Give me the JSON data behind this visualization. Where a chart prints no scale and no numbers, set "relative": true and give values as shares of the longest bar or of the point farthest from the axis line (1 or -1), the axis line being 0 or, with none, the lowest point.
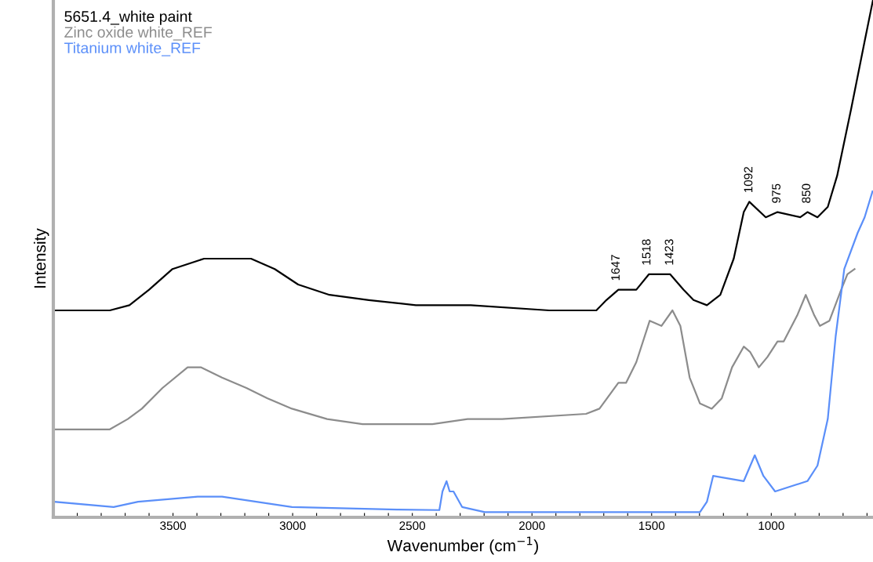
{
  "chart_data": {
    "type": "line",
    "relative": true,
    "xlabel": "Wavenumber (cm$^{−1}$)",
    "ylabel": "Intensity",
    "xlim": [
      4000,
      575
    ],
    "xticks": [
      {
        "value": 3900,
        "label": null
      },
      {
        "value": 3800,
        "label": null
      },
      {
        "value": 3700,
        "label": null
      },
      {
        "value": 3600,
        "label": null
      },
      3500,
      {
        "value": 3400,
        "label": null
      },
      {
        "value": 3300,
        "label": null
      },
      {
        "value": 3200,
        "label": null
      },
      {
        "value": 3100,
        "label": null
      },
      3000,
      {
        "value": 2900,
        "label": null
      },
      {
        "value": 2800,
        "label": null
      },
      {
        "value": 2700,
        "label": null
      },
      {
        "value": 2600,
        "label": null
      },
      2500,
      {
        "value": 2400,
        "label": null
      },
      {
        "value": 2300,
        "label": null
      },
      {
        "value": 2200,
        "label": null
      },
      {
        "value": 2100,
        "label": null
      },
      2000,
      {
        "value": 1900,
        "label": null
      },
      {
        "value": 1800,
        "label": null
      },
      {
        "value": 1700,
        "label": null
      },
      {
        "value": 1600,
        "label": null
      },
      1500,
      {
        "value": 1400,
        "label": null
      },
      {
        "value": 1300,
        "label": null
      },
      {
        "value": 1200,
        "label": null
      },
      {
        "value": 1100,
        "label": null
      },
      1000,
      {
        "value": 900,
        "label": null
      },
      {
        "value": 800,
        "label": null
      },
      {
        "value": 700,
        "label": null
      },
      {
        "value": 600,
        "label": null
      }
    ],
    "grid": false,
    "legend": "top left",
    "marker": "none",
    "line_style": "solid",
    "series": [
      {
        "name": "5651.4_white paint",
        "color": "#000000",
        "x": [
          4000,
          3764,
          3682,
          3600,
          3502,
          3370,
          3272,
          3174,
          3075,
          2977,
          2846,
          2682,
          2485,
          2256,
          1928,
          1731,
          1689,
          1639,
          1584,
          1564,
          1511,
          1459,
          1423,
          1367,
          1325,
          1269,
          1213,
          1157,
          1115,
          1092,
          1023,
          974,
          879,
          849,
          807,
          764,
          725,
          666,
          610,
          575
        ],
        "values": [
          0.4,
          0.4,
          0.41,
          0.44,
          0.48,
          0.5,
          0.5,
          0.5,
          0.48,
          0.45,
          0.43,
          0.42,
          0.41,
          0.41,
          0.4,
          0.4,
          0.42,
          0.44,
          0.44,
          0.44,
          0.47,
          0.47,
          0.47,
          0.44,
          0.42,
          0.41,
          0.43,
          0.5,
          0.59,
          0.61,
          0.58,
          0.59,
          0.58,
          0.59,
          0.58,
          0.6,
          0.66,
          0.79,
          0.92,
          1.0
        ]
      },
      {
        "name": "Zinc oxide white_REF",
        "color": "#8c8c8c",
        "x": [
          3995,
          3764,
          3689,
          3630,
          3544,
          3439,
          3384,
          3295,
          3193,
          3105,
          3003,
          2856,
          2708,
          2416,
          2269,
          2125,
          1774,
          1718,
          1639,
          1607,
          1564,
          1508,
          1459,
          1413,
          1380,
          1341,
          1298,
          1249,
          1207,
          1164,
          1115,
          1089,
          1052,
          1016,
          974,
          948,
          892,
          856,
          820,
          797,
          757,
          708,
          682,
          652
        ],
        "values": [
          0.17,
          0.17,
          0.19,
          0.21,
          0.25,
          0.29,
          0.29,
          0.27,
          0.25,
          0.23,
          0.21,
          0.19,
          0.18,
          0.18,
          0.19,
          0.19,
          0.2,
          0.21,
          0.26,
          0.26,
          0.3,
          0.38,
          0.37,
          0.4,
          0.37,
          0.27,
          0.22,
          0.21,
          0.23,
          0.29,
          0.33,
          0.32,
          0.29,
          0.31,
          0.34,
          0.34,
          0.39,
          0.43,
          0.39,
          0.37,
          0.38,
          0.44,
          0.47,
          0.48
        ]
      },
      {
        "name": "Titanium white_REF",
        "color": "#5b8ff9",
        "x": [
          3995,
          3748,
          3646,
          3397,
          3295,
          3003,
          2564,
          2387,
          2374,
          2357,
          2344,
          2328,
          2292,
          2197,
          1977,
          1744,
          1298,
          1269,
          1243,
          1115,
          1069,
          1033,
          984,
          849,
          807,
          764,
          731,
          695,
          639,
          610,
          577
        ],
        "values": [
          0.03,
          0.02,
          0.03,
          0.04,
          0.04,
          0.02,
          0.015,
          0.014,
          0.05,
          0.07,
          0.05,
          0.05,
          0.02,
          0.01,
          0.01,
          0.01,
          0.01,
          0.03,
          0.08,
          0.07,
          0.12,
          0.08,
          0.05,
          0.07,
          0.1,
          0.19,
          0.35,
          0.48,
          0.55,
          0.58,
          0.63
        ]
      }
    ],
    "annotations": [
      {
        "text": "1647",
        "x": 1647,
        "y": 0.44
      },
      {
        "text": "1518",
        "x": 1518,
        "y": 0.47
      },
      {
        "text": "1423",
        "x": 1423,
        "y": 0.47
      },
      {
        "text": "1092",
        "x": 1092,
        "y": 0.61
      },
      {
        "text": "975",
        "x": 975,
        "y": 0.59
      },
      {
        "text": "850",
        "x": 850,
        "y": 0.59
      }
    ]
  }
}
